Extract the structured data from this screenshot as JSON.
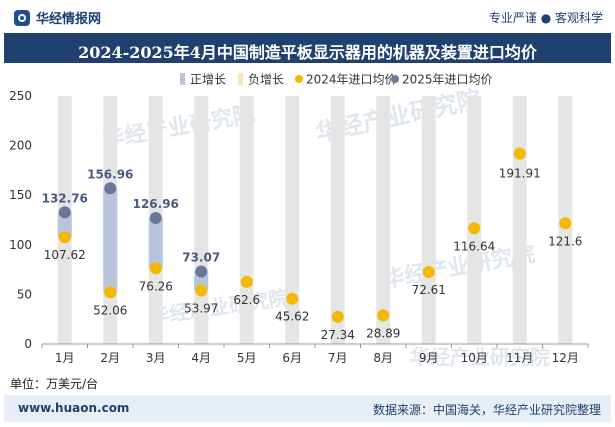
{
  "header": {
    "brand": "华经情报网",
    "slogan": "专业严谨 ● 客观科学"
  },
  "title": "2024-2025年4月中国制造平板显示器用的机器及装置进口均价",
  "unit_label": "单位：万美元/台",
  "footer": {
    "website": "www.huaon.com",
    "source": "数据来源：中国海关，华经产业研究院整理"
  },
  "watermark": "华经产业研究院",
  "colors": {
    "title_bg": "#20406f",
    "bar_bg": "#e5e5e5",
    "positive_growth": "#b8c4d9",
    "negative_growth": "#fbe3b8",
    "series_2024": "#f5b800",
    "series_2025": "#6b7796"
  },
  "chart_data": {
    "type": "line",
    "categories": [
      "1月",
      "2月",
      "3月",
      "4月",
      "5月",
      "6月",
      "7月",
      "8月",
      "9月",
      "10月",
      "11月",
      "12月"
    ],
    "ylim": [
      0,
      250
    ],
    "yticks": [
      0,
      50,
      100,
      150,
      200,
      250
    ],
    "legend_position": "top",
    "grid": false,
    "legend": [
      "正增长",
      "负增长",
      "2024年进口均价",
      "2025年进口均价"
    ],
    "series": [
      {
        "name": "2024年进口均价",
        "values": [
          107.62,
          52.06,
          76.26,
          53.97,
          62.6,
          45.62,
          27.34,
          28.89,
          72.61,
          116.64,
          191.91,
          121.6
        ],
        "labels": [
          "107.62",
          "52.06",
          "76.26",
          "53.97",
          "62.6",
          "45.62",
          "27.34",
          "28.89",
          "72.61",
          "116.64",
          "191.91",
          "121.6"
        ]
      },
      {
        "name": "2025年进口均价",
        "values": [
          132.76,
          156.96,
          126.96,
          73.07,
          null,
          null,
          null,
          null,
          null,
          null,
          null,
          null
        ],
        "labels": [
          "132.76",
          "156.96",
          "126.96",
          "73.07"
        ]
      }
    ]
  }
}
